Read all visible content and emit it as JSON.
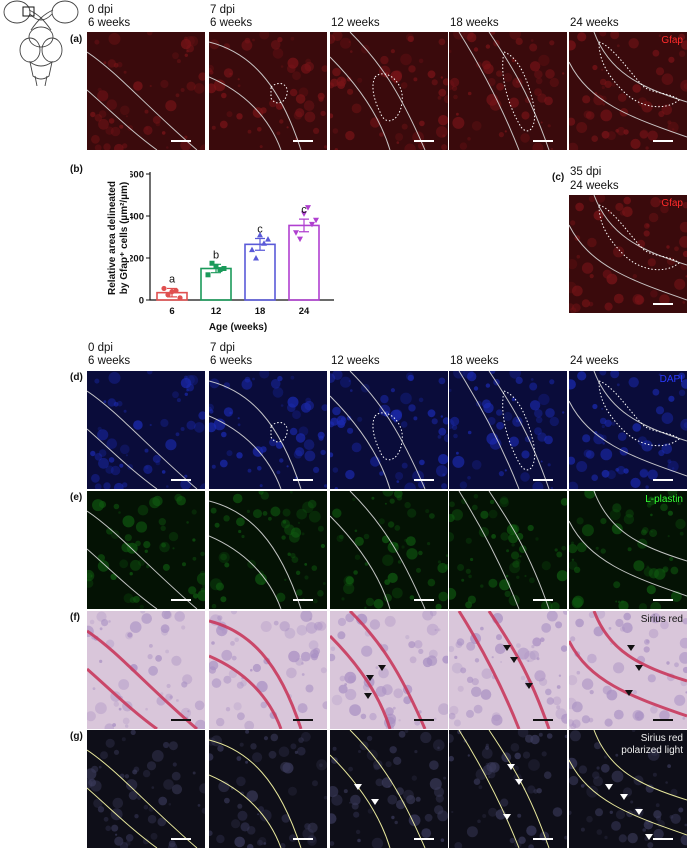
{
  "colors": {
    "gfap_bg": "#3a0a0c",
    "gfap_tissue": "#7a1418",
    "gfap_label": "#ff2a2a",
    "dapi_bg": "#0a0c3a",
    "dapi_tissue": "#1b2ab0",
    "dapi_label": "#2a3aff",
    "lplastin_bg": "#041204",
    "lplastin_tissue": "#0f5a10",
    "lplastin_label": "#33ff33",
    "sirius_bg": "#d9c6da",
    "sirius_tissue": "#a78ec2",
    "sirius_red": "#c8385c",
    "polar_bg": "#0e0e18",
    "polar_line": "#ffffaa",
    "bar6": "#e05050",
    "bar12": "#1a9a5a",
    "bar18": "#5a5ad8",
    "bar24": "#b040d0"
  },
  "icons": [
    "zebrafish-brain-schematic-icon",
    "arrowhead-black-icon",
    "arrowhead-white-icon"
  ],
  "column_headers": {
    "top": [
      {
        "line1": "0 dpi",
        "line2": "6 weeks"
      },
      {
        "line1": "7 dpi",
        "line2": "6 weeks"
      },
      {
        "line1": "",
        "line2": "12 weeks"
      },
      {
        "line1": "",
        "line2": "18 weeks"
      },
      {
        "line1": "",
        "line2": "24 weeks"
      }
    ],
    "bottom": [
      {
        "line1": "0 dpi",
        "line2": "6 weeks"
      },
      {
        "line1": "7 dpi",
        "line2": "6 weeks"
      },
      {
        "line1": "",
        "line2": "12 weeks"
      },
      {
        "line1": "",
        "line2": "18 weeks"
      },
      {
        "line1": "",
        "line2": "24 weeks"
      }
    ]
  },
  "panels": {
    "a": {
      "label": "(a)",
      "stain": "Gfap"
    },
    "b": {
      "label": "(b)"
    },
    "c": {
      "label": "(c)",
      "header1": "35 dpi",
      "header2": "24 weeks",
      "stain": "Gfap"
    },
    "d": {
      "label": "(d)",
      "stain": "DAPI"
    },
    "e": {
      "label": "(e)",
      "stain": "L-plastin"
    },
    "f": {
      "label": "(f)",
      "stain": "Sirius red"
    },
    "g": {
      "label": "(g)",
      "stain1": "Sirius red",
      "stain2": "polarized light"
    }
  },
  "chart_data": {
    "type": "bar",
    "title": "",
    "xlabel": "Age (weeks)",
    "ylabel_line1": "Relative area delineated",
    "ylabel_line2": "by Gfap⁺ cells (µm²/µm)",
    "ylim": [
      0,
      600
    ],
    "yticks": [
      "0",
      "200",
      "400",
      "600"
    ],
    "categories": [
      "6",
      "12",
      "18",
      "24"
    ],
    "values": [
      35,
      150,
      265,
      355
    ],
    "sem": [
      20,
      20,
      28,
      30
    ],
    "letters": [
      "a",
      "b",
      "c",
      "c"
    ],
    "points": [
      [
        55,
        40,
        10,
        25,
        45
      ],
      [
        120,
        160,
        150,
        175,
        145
      ],
      [
        240,
        310,
        290,
        200,
        270
      ],
      [
        320,
        410,
        360,
        290,
        440,
        380
      ]
    ],
    "markers": [
      "circle",
      "square",
      "triangle-up",
      "triangle-down"
    ]
  }
}
